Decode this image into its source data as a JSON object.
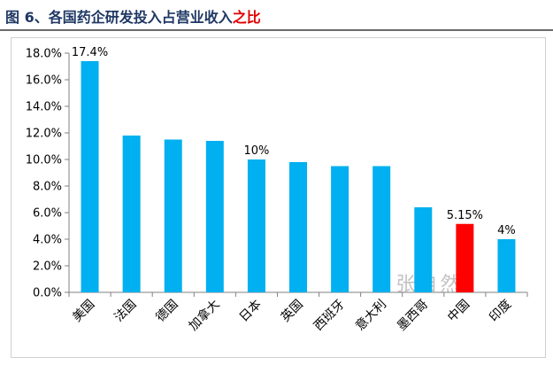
{
  "title": {
    "prefix": "图 6、各国药企研发投入占营业收入",
    "emphasis": "之比"
  },
  "watermark": "张自然",
  "colors": {
    "bar": "#00b0f0",
    "highlight_bar": "#ff0000",
    "title": "#1f3864",
    "title_emphasis": "#e00000"
  },
  "chart_data": {
    "type": "bar",
    "categories": [
      "美国",
      "法国",
      "德国",
      "加拿大",
      "日本",
      "英国",
      "西班牙",
      "意大利",
      "墨西哥",
      "中国",
      "印度"
    ],
    "values": [
      17.4,
      11.8,
      11.5,
      11.4,
      10.0,
      9.8,
      9.5,
      9.5,
      6.4,
      5.15,
      4.0
    ],
    "highlight_category": "中国",
    "data_labels": [
      {
        "category": "美国",
        "text": "17.4%"
      },
      {
        "category": "日本",
        "text": "10%"
      },
      {
        "category": "中国",
        "text": "5.15%"
      },
      {
        "category": "印度",
        "text": "4%"
      }
    ],
    "y_ticks": [
      "0.0%",
      "2.0%",
      "4.0%",
      "6.0%",
      "8.0%",
      "10.0%",
      "12.0%",
      "14.0%",
      "16.0%",
      "18.0%"
    ],
    "ylim": [
      0,
      18
    ],
    "grid": false,
    "legend": "none"
  }
}
